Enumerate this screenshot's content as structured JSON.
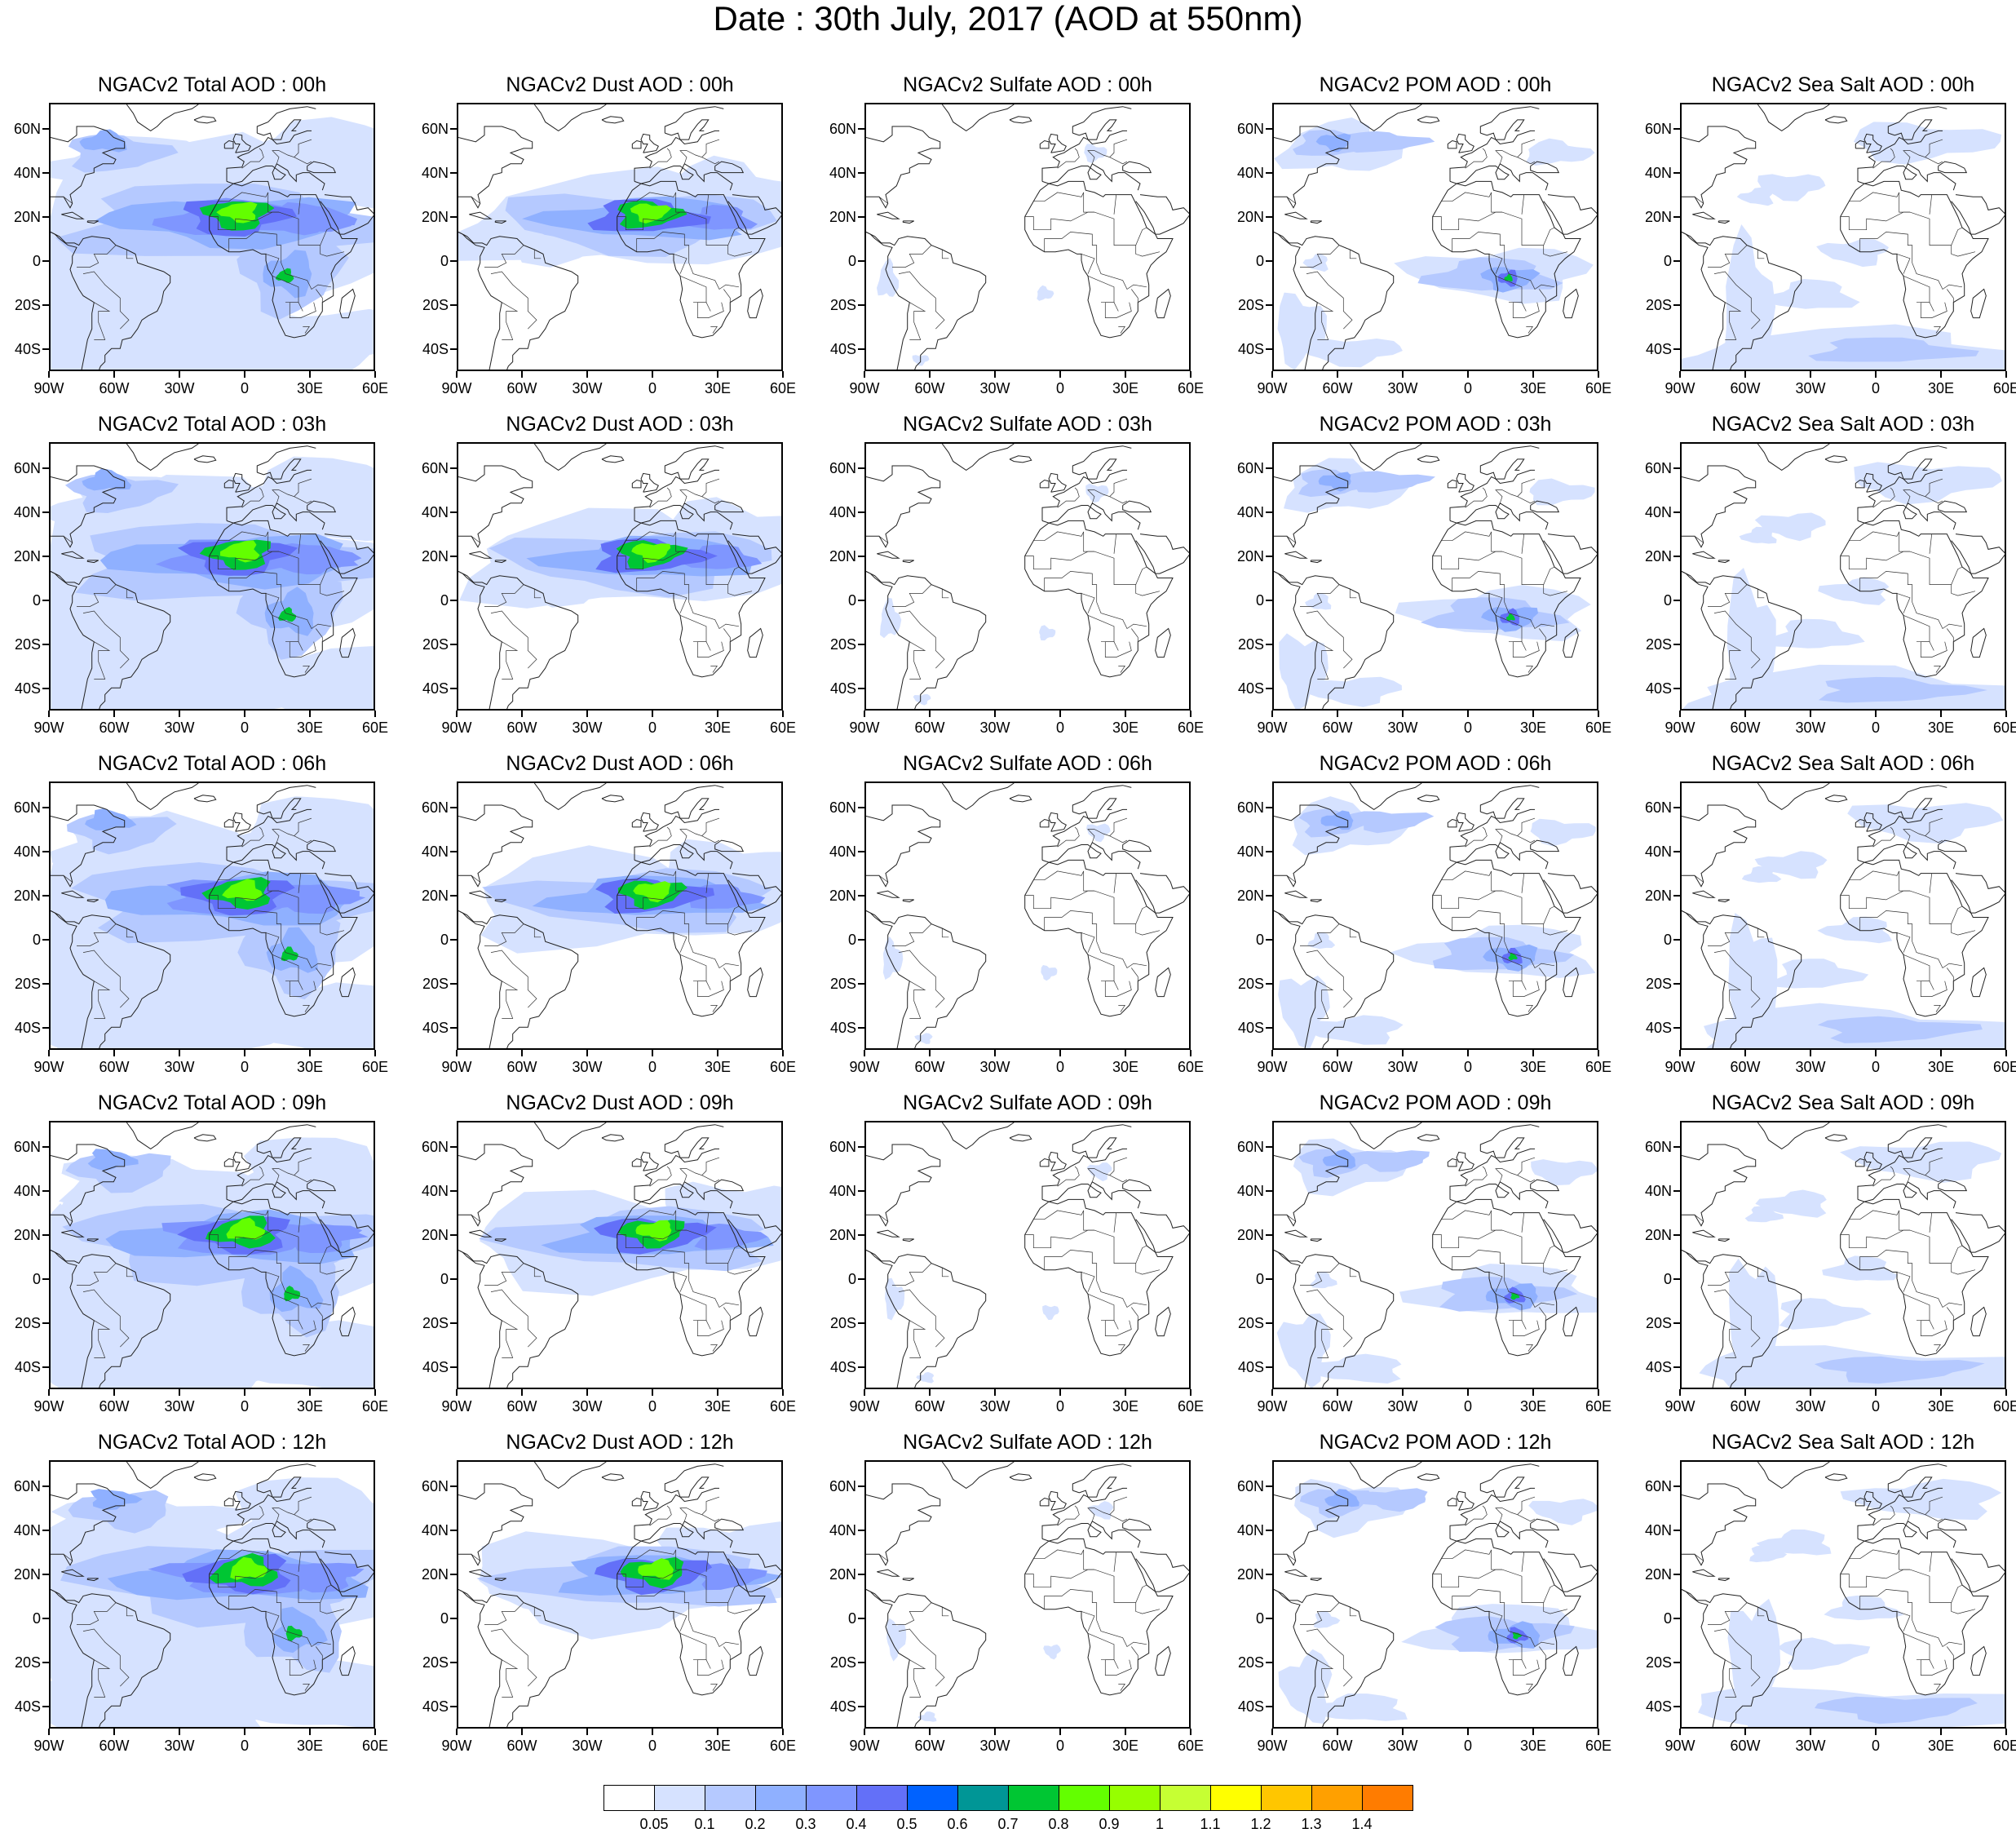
{
  "title": "Date : 30th July, 2017 (AOD at 550nm)",
  "panels": [
    {
      "title": "NGACv2 Total AOD : 00h",
      "species": "total",
      "hour": "00h"
    },
    {
      "title": "NGACv2 Dust AOD : 00h",
      "species": "dust",
      "hour": "00h"
    },
    {
      "title": "NGACv2 Sulfate AOD : 00h",
      "species": "sulfate",
      "hour": "00h"
    },
    {
      "title": "NGACv2 POM AOD : 00h",
      "species": "pom",
      "hour": "00h"
    },
    {
      "title": "NGACv2 Sea Salt AOD : 00h",
      "species": "seasalt",
      "hour": "00h"
    },
    {
      "title": "NGACv2 Total AOD : 03h",
      "species": "total",
      "hour": "03h"
    },
    {
      "title": "NGACv2 Dust AOD : 03h",
      "species": "dust",
      "hour": "03h"
    },
    {
      "title": "NGACv2 Sulfate AOD : 03h",
      "species": "sulfate",
      "hour": "03h"
    },
    {
      "title": "NGACv2 POM AOD : 03h",
      "species": "pom",
      "hour": "03h"
    },
    {
      "title": "NGACv2 Sea Salt AOD : 03h",
      "species": "seasalt",
      "hour": "03h"
    },
    {
      "title": "NGACv2 Total AOD : 06h",
      "species": "total",
      "hour": "06h"
    },
    {
      "title": "NGACv2 Dust AOD : 06h",
      "species": "dust",
      "hour": "06h"
    },
    {
      "title": "NGACv2 Sulfate AOD : 06h",
      "species": "sulfate",
      "hour": "06h"
    },
    {
      "title": "NGACv2 POM AOD : 06h",
      "species": "pom",
      "hour": "06h"
    },
    {
      "title": "NGACv2 Sea Salt AOD : 06h",
      "species": "seasalt",
      "hour": "06h"
    },
    {
      "title": "NGACv2 Total AOD : 09h",
      "species": "total",
      "hour": "09h"
    },
    {
      "title": "NGACv2 Dust AOD : 09h",
      "species": "dust",
      "hour": "09h"
    },
    {
      "title": "NGACv2 Sulfate AOD : 09h",
      "species": "sulfate",
      "hour": "09h"
    },
    {
      "title": "NGACv2 POM AOD : 09h",
      "species": "pom",
      "hour": "09h"
    },
    {
      "title": "NGACv2 Sea Salt  AOD : 09h",
      "species": "seasalt",
      "hour": "09h"
    },
    {
      "title": "NGACv2 Total AOD  : 12h",
      "species": "total",
      "hour": "12h"
    },
    {
      "title": "NGACv2 Dust AOD : 12h",
      "species": "dust",
      "hour": "12h"
    },
    {
      "title": "NGACv2 Sulfate AOD : 12h",
      "species": "sulfate",
      "hour": "12h"
    },
    {
      "title": "NGACv2 POM  AOD : 12h",
      "species": "pom",
      "hour": "12h"
    },
    {
      "title": "NGACv2 Sea Salt  AOD : 12h",
      "species": "seasalt",
      "hour": "12h"
    }
  ],
  "axes": {
    "lat_labels": [
      "60N",
      "40N",
      "20N",
      "0",
      "20S",
      "40S"
    ],
    "lat_values": [
      60,
      40,
      20,
      0,
      -20,
      -40
    ],
    "lon_labels": [
      "90W",
      "60W",
      "30W",
      "0",
      "30E",
      "60E"
    ],
    "lon_values": [
      -90,
      -60,
      -30,
      0,
      30,
      60
    ],
    "lat_range": [
      -50,
      72
    ],
    "lon_range": [
      -90,
      60
    ]
  },
  "colorbar": {
    "levels": [
      "0.05",
      "0.1",
      "0.2",
      "0.3",
      "0.4",
      "0.5",
      "0.6",
      "0.7",
      "0.8",
      "0.9",
      "1",
      "1.1",
      "1.2",
      "1.3",
      "1.4"
    ],
    "colors": [
      "#ffffff",
      "#d6e2ff",
      "#b5c9ff",
      "#8fb0ff",
      "#7f96ff",
      "#6370f8",
      "#0062ff",
      "#009696",
      "#00c633",
      "#63ff00",
      "#96ff00",
      "#c6ff33",
      "#ffff00",
      "#ffc600",
      "#ffa000",
      "#ff7c00",
      "#ff1900"
    ]
  }
}
